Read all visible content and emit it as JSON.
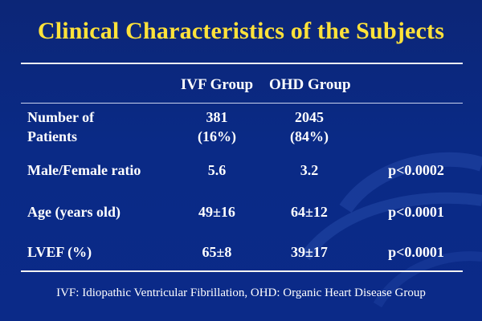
{
  "title": "Clinical Characteristics of the Subjects",
  "columns": [
    "IVF Group",
    "OHD Group"
  ],
  "rows": [
    {
      "label_line1": "Number of",
      "label_line2": "Patients",
      "ivf_line1": "381",
      "ivf_line2": "(16%)",
      "ohd_line1": "2045",
      "ohd_line2": "(84%)",
      "p": ""
    },
    {
      "label": "Male/Female ratio",
      "ivf": "5.6",
      "ohd": "3.2",
      "p": "p<0.0002"
    },
    {
      "label": "Age (years old)",
      "ivf": "49±16",
      "ohd": "64±12",
      "p": "p<0.0001"
    },
    {
      "label": "LVEF (%)",
      "ivf": "65±8",
      "ohd": "39±17",
      "p": "p<0.0001"
    }
  ],
  "footnote": "IVF: Idiopathic Ventricular Fibrillation, OHD: Organic Heart Disease Group",
  "colors": {
    "title": "#ffe23a",
    "text": "#ffffff",
    "background": "#0b2a88"
  }
}
